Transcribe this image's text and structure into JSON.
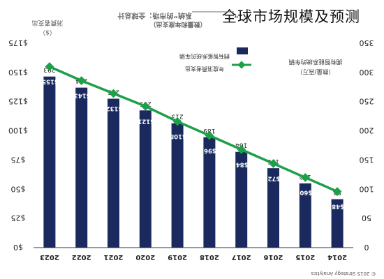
{
  "overlay_title": "全球市场规模及预测",
  "chart_data": {
    "type": "bar",
    "title": "“____________系统”的市场：全球总计",
    "subtitle": "（数量和年度支出）",
    "categories": [
      "2023",
      "2022",
      "2021",
      "2020",
      "2019",
      "2018",
      "2017",
      "2016",
      "2015",
      "2014"
    ],
    "series": [
      {
        "name": "拥有智能系统的车辆",
        "type": "bar",
        "axis": "right",
        "values": [
          293,
          274,
          255,
          235,
          213,
          189,
          164,
          136,
          110,
          83
        ],
        "labels": [
          "293",
          "274",
          "255",
          "235",
          "213",
          "189",
          "164",
          "136",
          "110",
          "83"
        ],
        "color": "#1a2a5e"
      },
      {
        "name": "年度消费者支出",
        "type": "line",
        "axis": "left",
        "values": [
          155,
          143,
          132,
          121,
          108,
          96,
          84,
          72,
          60,
          48
        ],
        "labels": [
          "$155",
          "$143",
          "$132",
          "$121",
          "$108",
          "$96",
          "$84",
          "$72",
          "$60",
          "$48"
        ],
        "color": "#1ea04a"
      }
    ],
    "left_axis": {
      "label": "消费者支出",
      "unit": "（$）",
      "ticks": [
        "$0",
        "$25",
        "$50",
        "$75",
        "$100",
        "$125",
        "$150",
        "$175"
      ],
      "range": [
        0,
        175
      ]
    },
    "right_axis": {
      "label": "拥有智能系统的车辆",
      "unit": "（数量/百万）",
      "ticks": [
        "0",
        "50",
        "100",
        "150",
        "200",
        "250",
        "300",
        "350"
      ],
      "range": [
        0,
        350
      ]
    },
    "legend_position": "top-right",
    "grid": false,
    "source": "© 2015 Strategy Analytics"
  }
}
